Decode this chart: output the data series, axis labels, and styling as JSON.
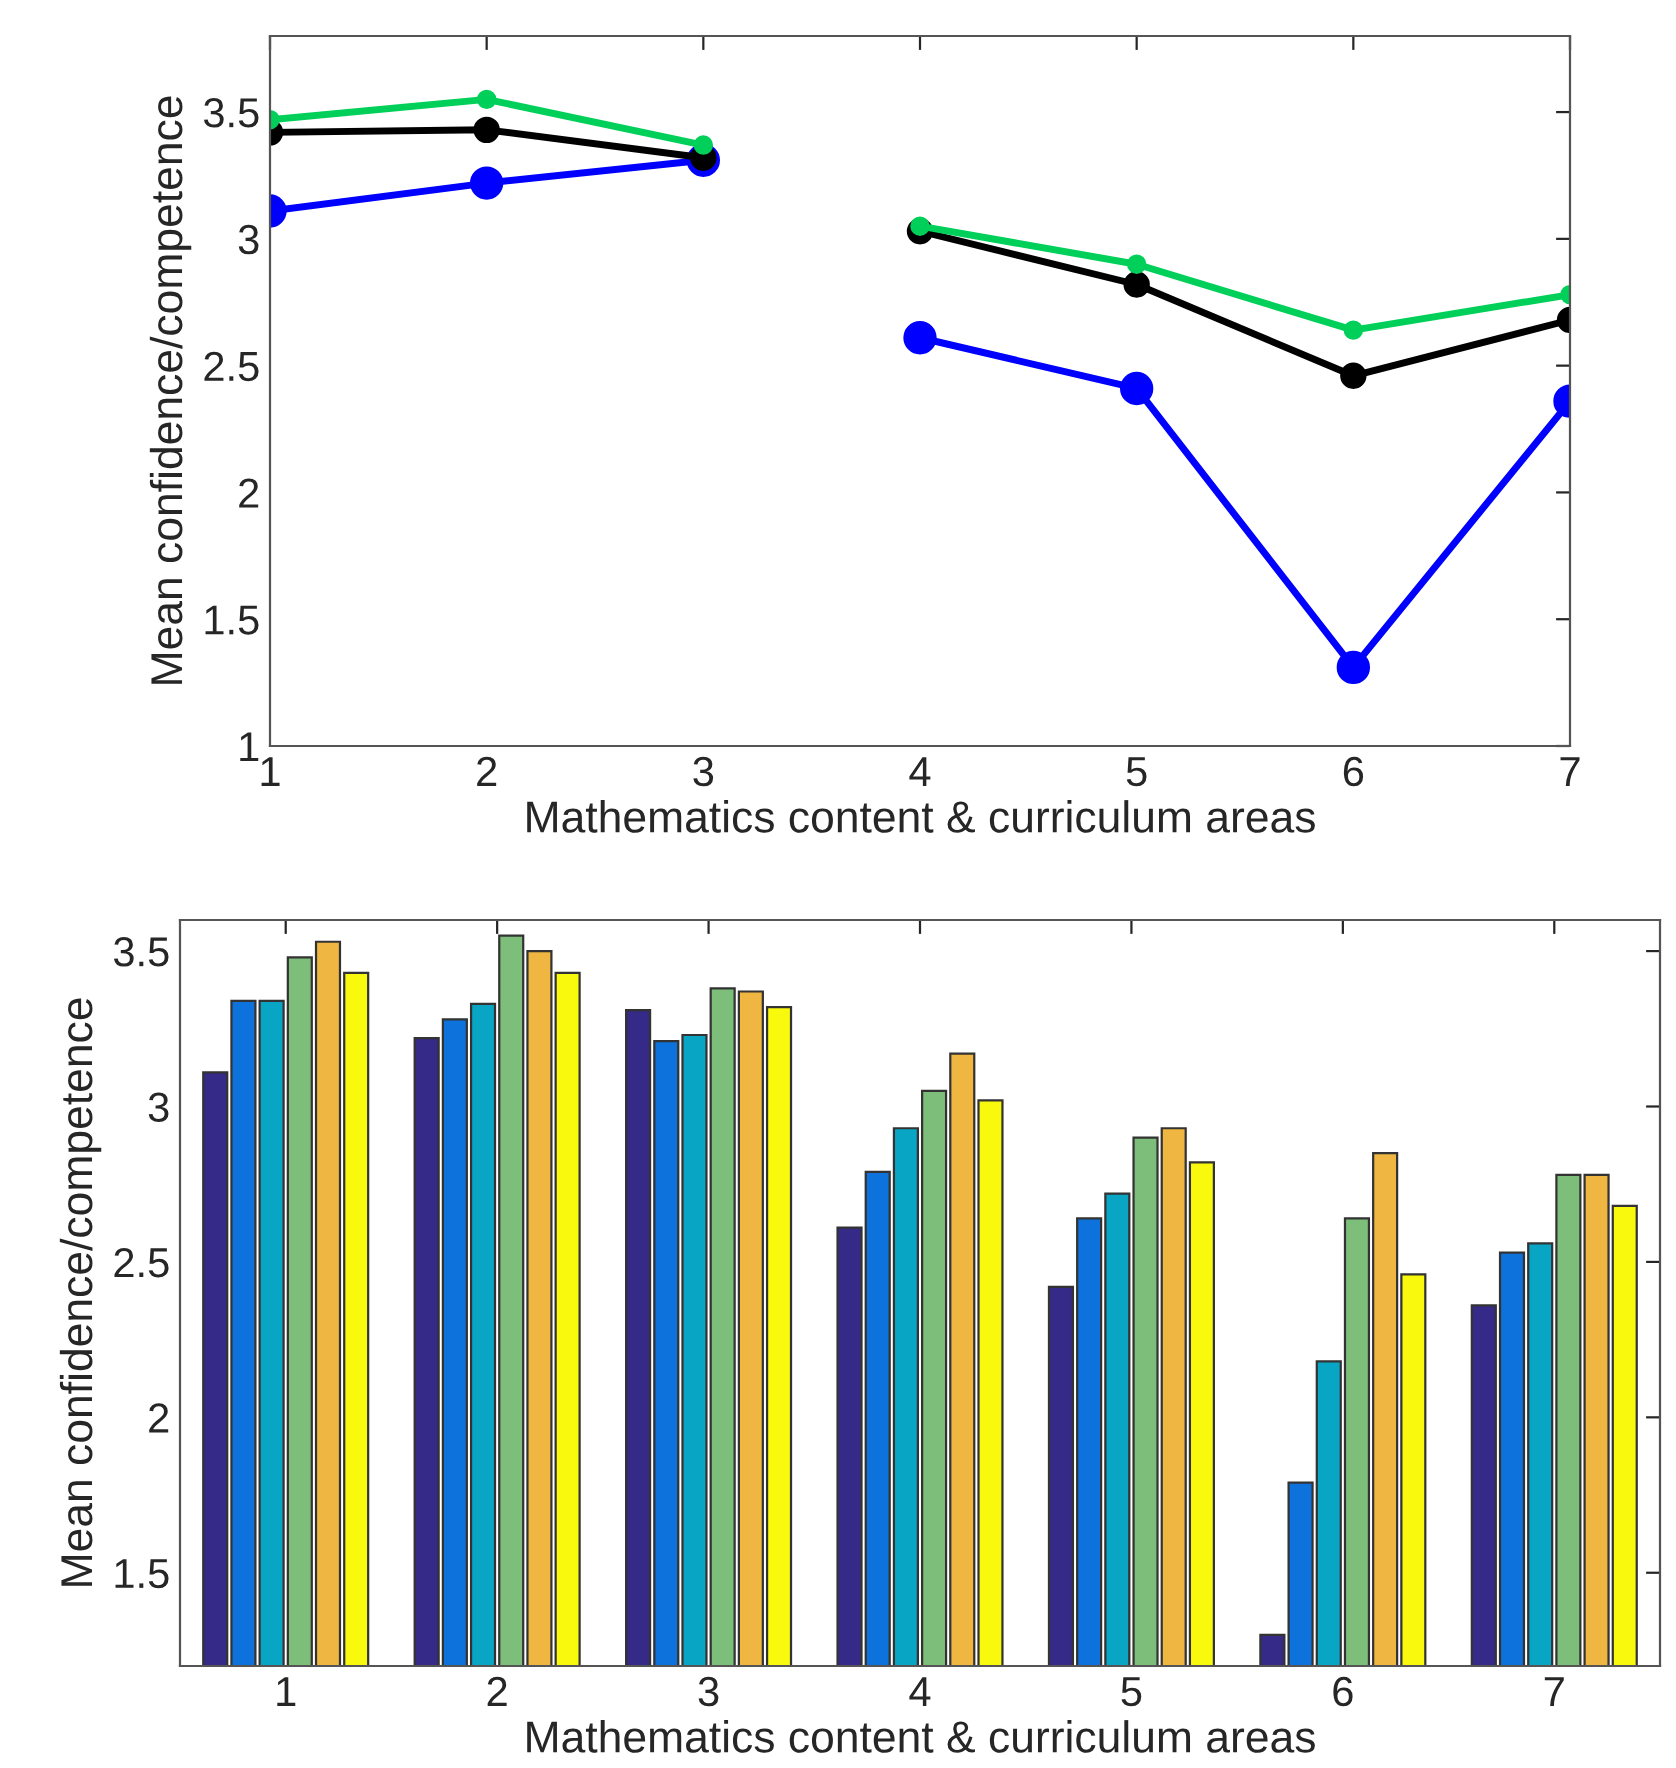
{
  "chart_data": [
    {
      "type": "line",
      "xlabel": "Mathematics content & curriculum areas",
      "ylabel": "Mean confidence/competence",
      "x": [
        1,
        2,
        3,
        3.5,
        4,
        5,
        6,
        7
      ],
      "xlim": [
        1,
        7
      ],
      "xticks": [
        1,
        2,
        3,
        4,
        5,
        6,
        7
      ],
      "ylim": [
        1,
        3.8
      ],
      "yticks": [
        1,
        1.5,
        2,
        2.5,
        3,
        3.5
      ],
      "grid": false,
      "legend": false,
      "marker": "circle",
      "line_style": "solid",
      "series": [
        {
          "color": "#0000ff",
          "values": [
            3.11,
            3.22,
            3.31,
            null,
            2.61,
            2.41,
            1.31,
            2.36
          ]
        },
        {
          "color": "#000000",
          "values": [
            3.42,
            3.43,
            3.32,
            null,
            3.03,
            2.82,
            2.46,
            2.68
          ]
        },
        {
          "color": "#00d05a",
          "values": [
            3.47,
            3.55,
            3.37,
            null,
            3.05,
            2.9,
            2.64,
            2.78
          ]
        }
      ]
    },
    {
      "type": "bar",
      "xlabel": "Mathematics content & curriculum areas",
      "ylabel": "Mean confidence/competence",
      "categories": [
        "1",
        "2",
        "3",
        "4",
        "5",
        "6",
        "7"
      ],
      "ylim": [
        1.2,
        3.6
      ],
      "yticks": [
        1.5,
        2,
        2.5,
        3,
        3.5
      ],
      "grid": false,
      "legend": false,
      "series": [
        {
          "color": "#352a87",
          "values": [
            3.11,
            3.22,
            3.31,
            2.61,
            2.42,
            1.3,
            2.36
          ]
        },
        {
          "color": "#0d72dc",
          "values": [
            3.34,
            3.28,
            3.21,
            2.79,
            2.64,
            1.79,
            2.53
          ]
        },
        {
          "color": "#08a6c4",
          "values": [
            3.34,
            3.33,
            3.23,
            2.93,
            2.72,
            2.18,
            2.56
          ]
        },
        {
          "color": "#7dbe7a",
          "values": [
            3.48,
            3.55,
            3.38,
            3.05,
            2.9,
            2.64,
            2.78
          ]
        },
        {
          "color": "#efb741",
          "values": [
            3.53,
            3.5,
            3.37,
            3.17,
            2.93,
            2.85,
            2.78
          ]
        },
        {
          "color": "#f8f90d",
          "values": [
            3.43,
            3.43,
            3.32,
            3.02,
            2.82,
            2.46,
            2.68
          ]
        }
      ]
    }
  ]
}
